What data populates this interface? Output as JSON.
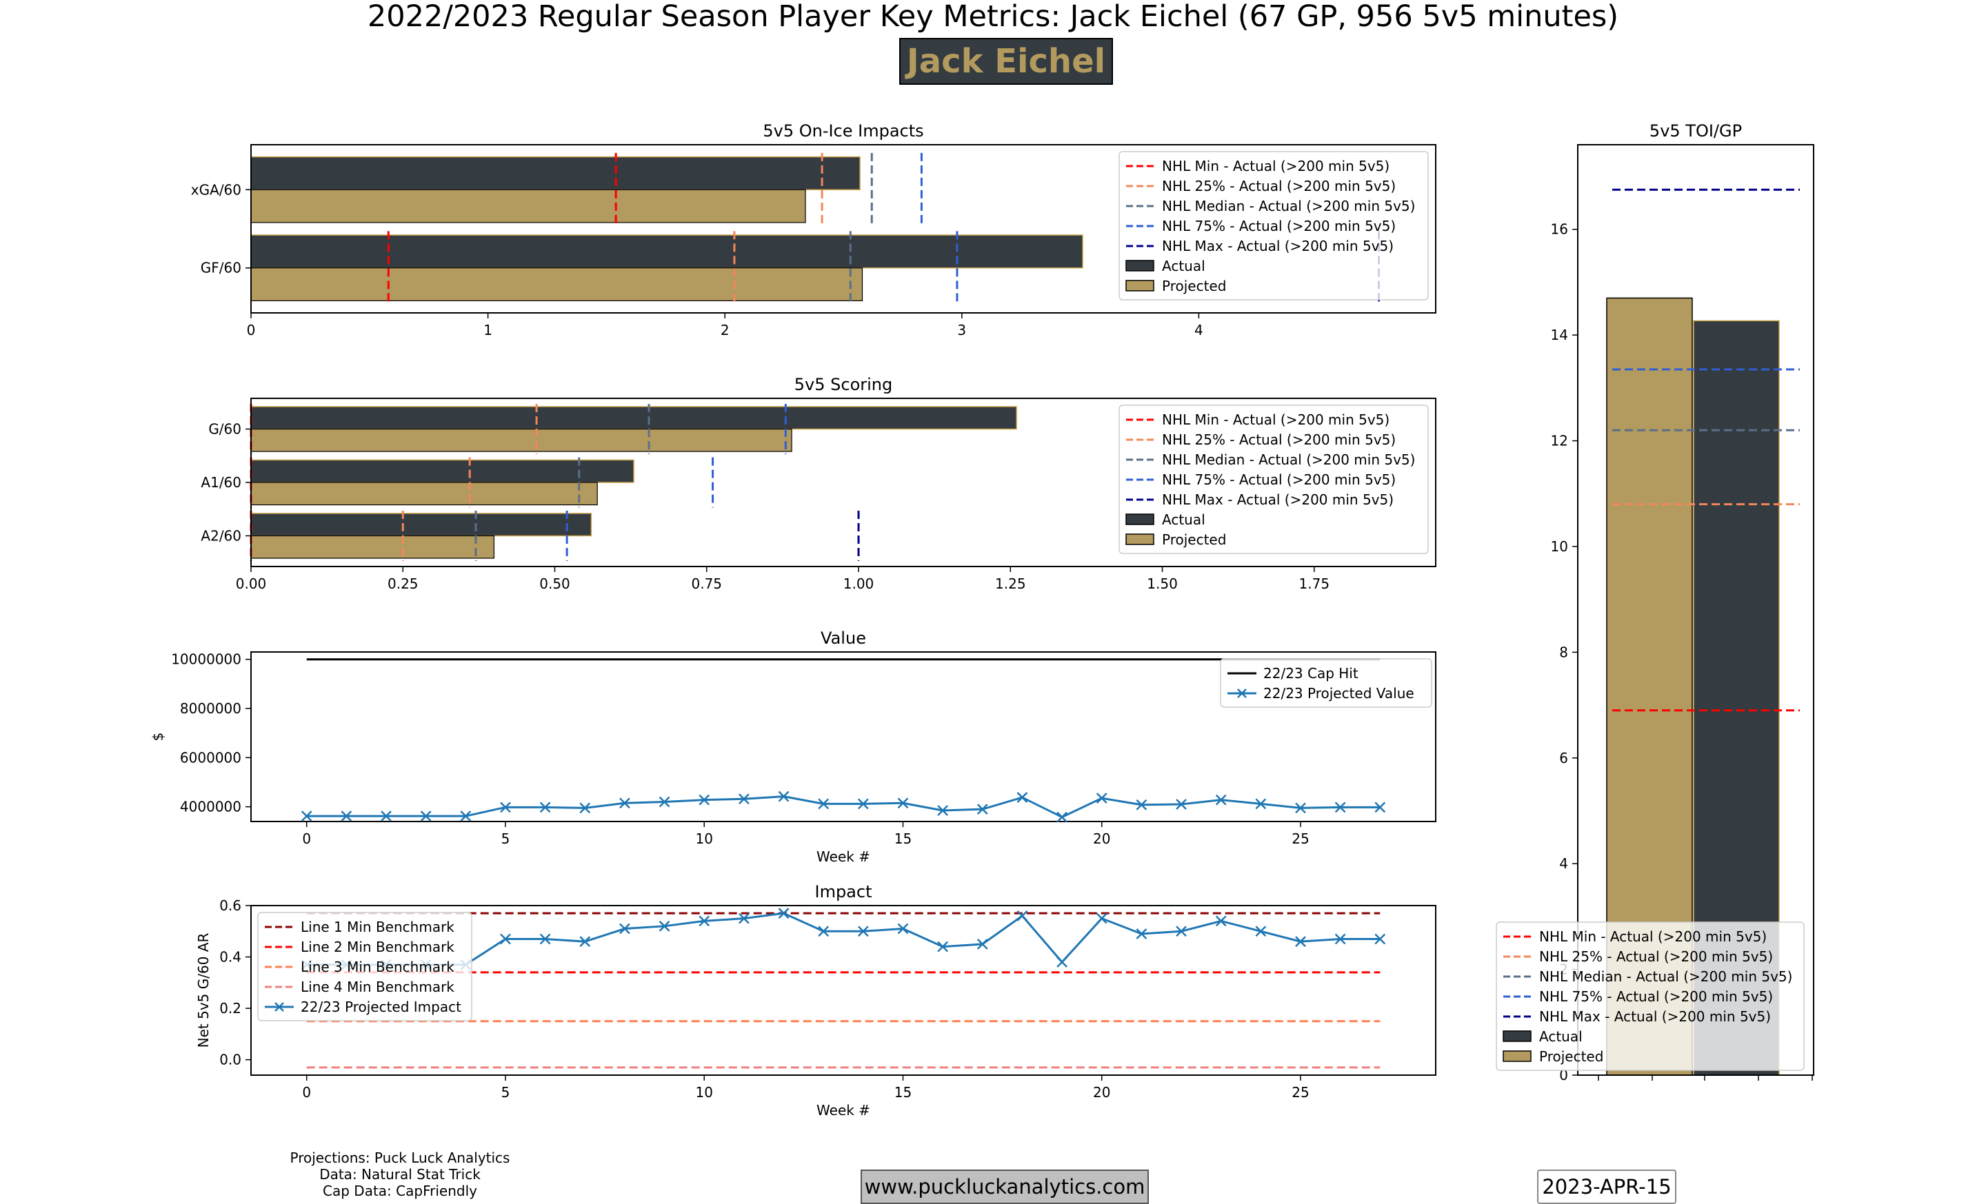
{
  "title": "2022/2023 Regular Season Player Key Metrics: Jack Eichel (67 GP, 956 5v5 minutes)",
  "player_name": "Jack Eichel",
  "credits": [
    "Projections: Puck Luck Analytics",
    "Data: Natural Stat Trick",
    "Cap Data: CapFriendly"
  ],
  "website": "www.puckluckanalytics.com",
  "date": "2023-APR-15",
  "colors": {
    "actual": "#343b41",
    "projected": "#b39a5e",
    "bar_edge": "#c9a24a",
    "nhl_min": "#ff0000",
    "nhl_25": "#f4875a",
    "nhl_median": "#5b6f8a",
    "nhl_75": "#2f5fd6",
    "nhl_max": "#00008b",
    "value_line": "#1f77b4",
    "line1": "#8b0000",
    "line2": "#ff0000",
    "line3": "#ff7f50",
    "line4": "#f08080"
  },
  "chart_data": [
    {
      "id": "impacts",
      "type": "bar",
      "orientation": "horizontal",
      "title": "5v5 On-Ice Impacts",
      "categories": [
        "xGA/60",
        "GF/60"
      ],
      "series": [
        {
          "name": "Actual",
          "values": [
            2.57,
            3.51
          ]
        },
        {
          "name": "Projected",
          "values": [
            2.34,
            2.58
          ]
        }
      ],
      "xlim": [
        0,
        5.0
      ],
      "xticks": [
        0,
        1,
        2,
        3,
        4
      ],
      "benchmarks": [
        {
          "name": "NHL Min - Actual (>200 min 5v5)",
          "values": [
            1.54,
            0.58
          ]
        },
        {
          "name": "NHL 25% - Actual (>200 min 5v5)",
          "values": [
            2.41,
            2.04
          ]
        },
        {
          "name": "NHL Median - Actual (>200 min 5v5)",
          "values": [
            2.62,
            2.53
          ]
        },
        {
          "name": "NHL 75% - Actual (>200 min 5v5)",
          "values": [
            2.83,
            2.98
          ]
        },
        {
          "name": "NHL Max - Actual (>200 min 5v5)",
          "values": [
            null,
            4.76
          ]
        }
      ],
      "legend": "upper right"
    },
    {
      "id": "scoring",
      "type": "bar",
      "orientation": "horizontal",
      "title": "5v5 Scoring",
      "categories": [
        "G/60",
        "A1/60",
        "A2/60"
      ],
      "series": [
        {
          "name": "Actual",
          "values": [
            1.26,
            0.63,
            0.56
          ]
        },
        {
          "name": "Projected",
          "values": [
            0.89,
            0.57,
            0.4
          ]
        }
      ],
      "xlim": [
        0,
        1.95
      ],
      "xticks": [
        "0.00",
        "0.25",
        "0.50",
        "0.75",
        "1.00",
        "1.25",
        "1.50",
        "1.75"
      ],
      "benchmarks": [
        {
          "name": "NHL Min - Actual (>200 min 5v5)",
          "values": [
            0.0,
            0.0,
            0.0
          ]
        },
        {
          "name": "NHL 25% - Actual (>200 min 5v5)",
          "values": [
            0.47,
            0.36,
            0.25
          ]
        },
        {
          "name": "NHL Median - Actual (>200 min 5v5)",
          "values": [
            0.655,
            0.54,
            0.37
          ]
        },
        {
          "name": "NHL 75% - Actual (>200 min 5v5)",
          "values": [
            0.88,
            0.76,
            0.52
          ]
        },
        {
          "name": "NHL Max - Actual (>200 min 5v5)",
          "values": [
            null,
            null,
            1.0
          ]
        }
      ],
      "legend": "upper right"
    },
    {
      "id": "value",
      "type": "line",
      "title": "Value",
      "xlabel": "Week #",
      "ylabel": "$",
      "x": [
        0,
        1,
        2,
        3,
        4,
        5,
        6,
        7,
        8,
        9,
        10,
        11,
        12,
        13,
        14,
        15,
        16,
        17,
        18,
        19,
        20,
        21,
        22,
        23,
        24,
        25,
        26,
        27
      ],
      "series": [
        {
          "name": "22/23 Cap Hit",
          "values": [
            10000000,
            10000000,
            10000000,
            10000000,
            10000000,
            10000000,
            10000000,
            10000000,
            10000000,
            10000000,
            10000000,
            10000000,
            10000000,
            10000000,
            10000000,
            10000000,
            10000000,
            10000000,
            10000000,
            10000000,
            10000000,
            10000000,
            10000000,
            10000000,
            10000000,
            10000000,
            10000000,
            10000000
          ]
        },
        {
          "name": "22/23 Projected Value",
          "values": [
            3620000,
            3620000,
            3620000,
            3620000,
            3620000,
            3980000,
            3980000,
            3950000,
            4150000,
            4200000,
            4280000,
            4320000,
            4420000,
            4120000,
            4120000,
            4150000,
            3850000,
            3900000,
            4380000,
            3580000,
            4350000,
            4080000,
            4100000,
            4280000,
            4120000,
            3950000,
            3980000,
            3980000
          ]
        }
      ],
      "xlim": [
        -1.4,
        28.4
      ],
      "ylim": [
        3400000,
        10300000
      ],
      "xticks": [
        0,
        5,
        10,
        15,
        20,
        25
      ],
      "yticks": [
        "4000000",
        "6000000",
        "8000000",
        "10000000"
      ],
      "legend": "upper right"
    },
    {
      "id": "impact",
      "type": "line",
      "title": "Impact",
      "xlabel": "Week #",
      "ylabel": "Net 5v5 G/60 AR",
      "x": [
        0,
        1,
        2,
        3,
        4,
        5,
        6,
        7,
        8,
        9,
        10,
        11,
        12,
        13,
        14,
        15,
        16,
        17,
        18,
        19,
        20,
        21,
        22,
        23,
        24,
        25,
        26,
        27
      ],
      "benchmarks": [
        {
          "name": "Line 1 Min Benchmark",
          "value": 0.57
        },
        {
          "name": "Line 2 Min Benchmark",
          "value": 0.34
        },
        {
          "name": "Line 3 Min Benchmark",
          "value": 0.15
        },
        {
          "name": "Line 4 Min Benchmark",
          "value": -0.03
        }
      ],
      "series": [
        {
          "name": "22/23 Projected Impact",
          "values": [
            0.37,
            0.37,
            0.37,
            0.37,
            0.37,
            0.47,
            0.47,
            0.46,
            0.51,
            0.52,
            0.54,
            0.55,
            0.57,
            0.5,
            0.5,
            0.51,
            0.44,
            0.45,
            0.56,
            0.38,
            0.55,
            0.49,
            0.5,
            0.54,
            0.5,
            0.46,
            0.47,
            0.47
          ]
        }
      ],
      "xlim": [
        -1.4,
        28.4
      ],
      "ylim": [
        -0.06,
        0.6
      ],
      "xticks": [
        0,
        5,
        10,
        15,
        20,
        25
      ],
      "yticks": [
        "0.0",
        "0.2",
        "0.4",
        "0.6"
      ],
      "legend": "upper left"
    },
    {
      "id": "toi",
      "type": "bar",
      "title": "5v5 TOI/GP",
      "categories": [
        "Projected",
        "Actual"
      ],
      "values": [
        14.7,
        14.27
      ],
      "ylim": [
        0,
        17.6
      ],
      "yticks": [
        0,
        2,
        4,
        6,
        8,
        10,
        12,
        14,
        16
      ],
      "benchmarks": [
        {
          "name": "NHL Min - Actual (>200 min 5v5)",
          "value": 6.9
        },
        {
          "name": "NHL 25% - Actual (>200 min 5v5)",
          "value": 10.8
        },
        {
          "name": "NHL Median - Actual (>200 min 5v5)",
          "value": 12.2
        },
        {
          "name": "NHL 75% - Actual (>200 min 5v5)",
          "value": 13.35
        },
        {
          "name": "NHL Max - Actual (>200 min 5v5)",
          "value": 16.75
        }
      ],
      "legend_entries": [
        "NHL Min - Actual (>200 min 5v5)",
        "NHL 25% - Actual (>200 min 5v5)",
        "NHL Median - Actual (>200 min 5v5)",
        "NHL 75% - Actual (>200 min 5v5)",
        "NHL Max - Actual (>200 min 5v5)",
        "Actual",
        "Projected"
      ],
      "legend": "lower center"
    }
  ]
}
